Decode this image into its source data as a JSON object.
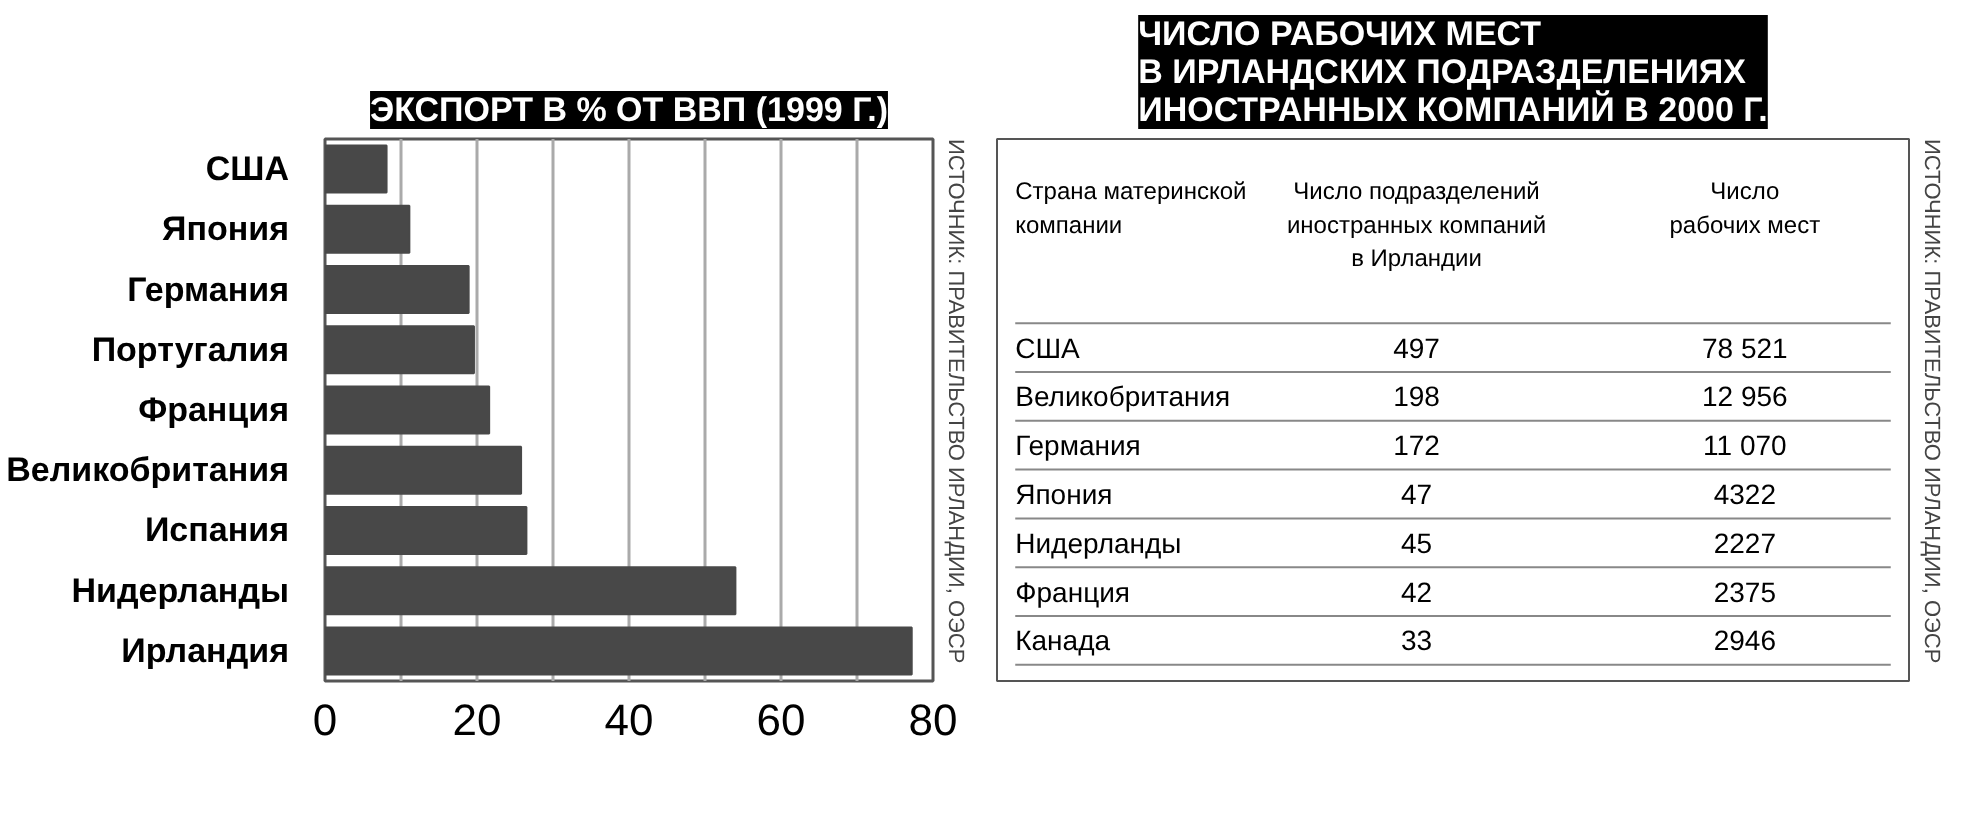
{
  "chart_data": [
    {
      "type": "bar",
      "orientation": "horizontal",
      "title": "ЭКСПОРТ В % ОТ ВВП (1999 Г.)",
      "categories": [
        "США",
        "Япония",
        "Германия",
        "Португалия",
        "Франция",
        "Великобритания",
        "Испания",
        "Нидерланды",
        "Ирландия"
      ],
      "values": [
        8.1,
        11.1,
        18.9,
        19.6,
        21.6,
        25.8,
        26.5,
        54,
        77.2
      ],
      "color": "#484848",
      "xlim": [
        0,
        80
      ],
      "xticks": [
        0,
        {
          "value": 10,
          "label": null
        },
        20,
        {
          "value": 30,
          "label": null
        },
        40,
        {
          "value": 50,
          "label": null
        },
        60,
        {
          "value": 70,
          "label": null
        },
        80
      ],
      "grid": "x",
      "annotations": [
        "ИСТОЧНИК: ПРАВИТЕЛЬСТВО ИРЛАНДИИ, ОЭСР"
      ]
    },
    {
      "type": "other",
      "title": "ЧИСЛО РАБОЧИХ МЕСТ\nВ ИРЛАНДСКИХ ПОДРАЗДЕЛЕНИЯХ\nИНОСТРАННЫХ КОМПАНИЙ В 2000 Г.",
      "xlabel": "Страна материнской\nкомпании",
      "data_labels": true,
      "categories": [
        "США",
        "Великобритания",
        "Германия",
        "Япония",
        "Нидерланды",
        "Франция",
        "Канада"
      ],
      "series": [
        {
          "name": "Число подразделений\nиностранных компаний\nв Ирландии",
          "values": [
            497,
            198,
            172,
            47,
            45,
            42,
            33
          ]
        },
        {
          "name": "Число\nрабочих мест",
          "values": [
            78521,
            12956,
            11070,
            4322,
            2227,
            2375,
            2946
          ]
        }
      ],
      "annotations": [
        "ИСТОЧНИК: ПРАВИТЕЛЬСТВО ИРЛАНДИИ, ОЭСР"
      ]
    }
  ]
}
